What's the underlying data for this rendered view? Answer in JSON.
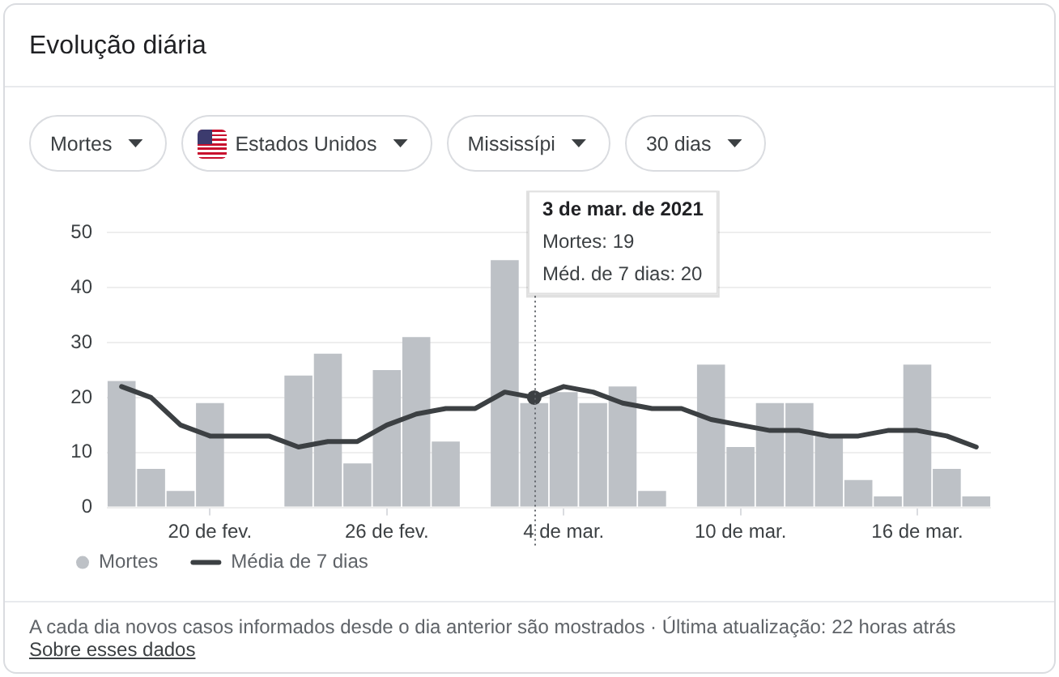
{
  "chart_data": {
    "type": "bar",
    "title": "Evolução diária",
    "x": [
      "2021-02-17",
      "2021-02-18",
      "2021-02-19",
      "2021-02-20",
      "2021-02-21",
      "2021-02-22",
      "2021-02-23",
      "2021-02-24",
      "2021-02-25",
      "2021-02-26",
      "2021-02-27",
      "2021-02-28",
      "2021-03-01",
      "2021-03-02",
      "2021-03-03",
      "2021-03-04",
      "2021-03-05",
      "2021-03-06",
      "2021-03-07",
      "2021-03-08",
      "2021-03-09",
      "2021-03-10",
      "2021-03-11",
      "2021-03-12",
      "2021-03-13",
      "2021-03-14",
      "2021-03-15",
      "2021-03-16",
      "2021-03-17",
      "2021-03-18"
    ],
    "xlim": [
      "2021-02-16T12:00",
      "2021-03-18T12:00"
    ],
    "xticks": [
      {
        "value": "2021-02-20",
        "label": "20 de fev."
      },
      {
        "value": "2021-02-26",
        "label": "26 de fev."
      },
      {
        "value": "2021-03-04",
        "label": "4 de mar."
      },
      {
        "value": "2021-03-10",
        "label": "10 de mar."
      },
      {
        "value": "2021-03-16",
        "label": "16 de mar."
      }
    ],
    "ylim": [
      0,
      50
    ],
    "yticks": [
      0,
      10,
      20,
      30,
      40,
      50
    ],
    "grid": "y",
    "legend": "bottom left",
    "series": [
      {
        "name": "Mortes",
        "color": "#bdc1c6",
        "values": [
          23,
          7,
          3,
          19,
          0,
          0,
          24,
          28,
          8,
          25,
          31,
          12,
          0,
          45,
          19,
          21,
          19,
          22,
          3,
          0,
          26,
          11,
          19,
          19,
          13,
          5,
          2,
          26,
          7,
          2
        ]
      },
      {
        "name": "Média de 7 dias",
        "type": "line",
        "color": "#3c4043",
        "values": [
          22,
          20,
          15,
          13,
          13,
          13,
          11,
          12,
          12,
          15,
          17,
          18,
          18,
          21,
          20,
          22,
          21,
          19,
          18,
          18,
          16,
          15,
          14,
          14,
          13,
          13,
          14,
          14,
          13,
          11
        ]
      },
      {
        "type": "scatter",
        "color": "#3c4043",
        "x": [
          "2021-03-03"
        ],
        "values": [
          20
        ]
      }
    ],
    "ref_lines": [
      {
        "axis": "x",
        "value": "2021-03-03",
        "label": "3 de mar. de 2021\nMortes: 19\nMéd. de 7 dias: 20",
        "color": "#5f6368",
        "line_style": "dotted"
      }
    ],
    "annotations": [
      "Mortes",
      "Estados Unidos",
      "Mississípi",
      "30 dias",
      "A cada dia novos casos informados desde o dia anterior são mostrados · Última atualização: 22 horas atrás",
      "Sobre esses dados"
    ]
  }
}
